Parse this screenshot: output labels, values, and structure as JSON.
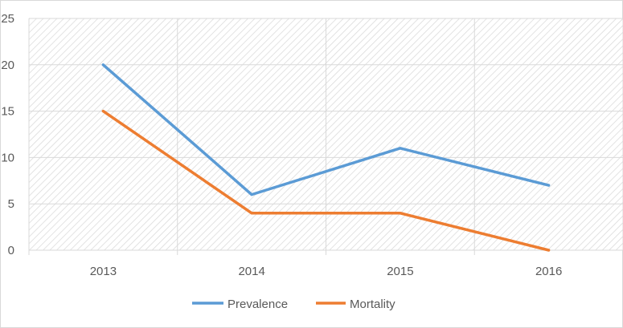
{
  "chart_data": {
    "type": "line",
    "title": "",
    "xlabel": "",
    "ylabel": "",
    "categories": [
      "2013",
      "2014",
      "2015",
      "2016"
    ],
    "ylim": [
      0,
      25
    ],
    "yticks": [
      "0",
      "5",
      "10",
      "15",
      "20",
      "25"
    ],
    "grid": true,
    "legend_position": "bottom",
    "series": [
      {
        "name": "Prevalence",
        "color": "#5b9bd5",
        "values": [
          20,
          6,
          11,
          7
        ]
      },
      {
        "name": "Mortality",
        "color": "#ed7d31",
        "values": [
          15,
          4,
          4,
          0
        ]
      }
    ]
  }
}
